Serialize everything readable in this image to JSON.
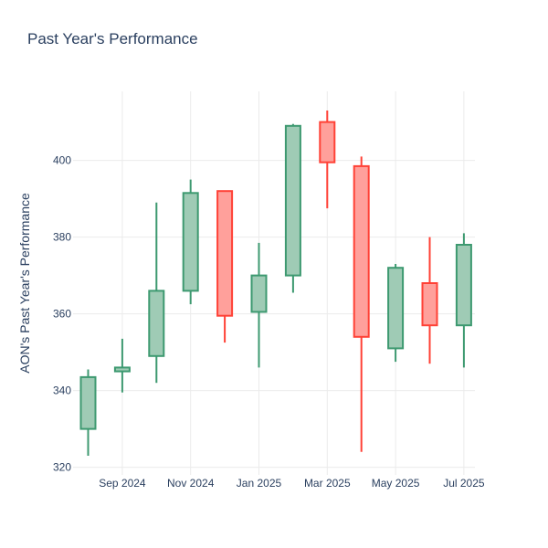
{
  "chart_data": {
    "type": "candlestick",
    "title": "Past Year's Performance",
    "xlabel": "",
    "ylabel": "AON's Past Year's Performance",
    "ylim": [
      318,
      418
    ],
    "yticks": [
      320,
      340,
      360,
      380,
      400
    ],
    "xticks": [
      "Sep 2024",
      "Nov 2024",
      "Jan 2025",
      "Mar 2025",
      "May 2025",
      "Jul 2025"
    ],
    "colors": {
      "increasing": "#3d9970",
      "increasing_fill": "#9fcbb5",
      "decreasing": "#ff4136",
      "decreasing_fill": "#ffa09b"
    },
    "candles": [
      {
        "month": "Aug 2024",
        "open": 330,
        "high": 345.5,
        "low": 323,
        "close": 343.5
      },
      {
        "month": "Sep 2024",
        "open": 345,
        "high": 353.5,
        "low": 339.5,
        "close": 346
      },
      {
        "month": "Oct 2024",
        "open": 349,
        "high": 389,
        "low": 342,
        "close": 366
      },
      {
        "month": "Nov 2024",
        "open": 366,
        "high": 395,
        "low": 362.5,
        "close": 391.5
      },
      {
        "month": "Dec 2024",
        "open": 392,
        "high": 392,
        "low": 352.5,
        "close": 359.5
      },
      {
        "month": "Jan 2025",
        "open": 360.5,
        "high": 378.5,
        "low": 346,
        "close": 370
      },
      {
        "month": "Feb 2025",
        "open": 370,
        "high": 409.5,
        "low": 365.5,
        "close": 409
      },
      {
        "month": "Mar 2025",
        "open": 410,
        "high": 413,
        "low": 387.5,
        "close": 399.5
      },
      {
        "month": "Apr 2025",
        "open": 398.5,
        "high": 401,
        "low": 324,
        "close": 354
      },
      {
        "month": "May 2025",
        "open": 351,
        "high": 373,
        "low": 347.5,
        "close": 372
      },
      {
        "month": "Jun 2025",
        "open": 368,
        "high": 380,
        "low": 347,
        "close": 357
      },
      {
        "month": "Jul 2025",
        "open": 357,
        "high": 381,
        "low": 346,
        "close": 378
      }
    ]
  }
}
